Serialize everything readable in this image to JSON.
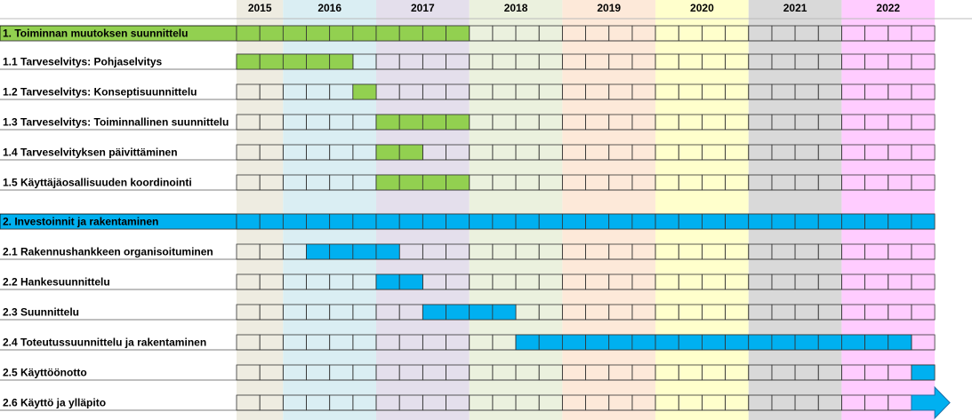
{
  "years": [
    "2015",
    "2016",
    "2017",
    "2018",
    "2019",
    "2020",
    "2021",
    "2022"
  ],
  "year_colors": [
    "#eeece1",
    "#daeef3",
    "#e4dfec",
    "#ebf1de",
    "#fde9d9",
    "#ffffcc",
    "#d9d9d9",
    "#ffccff"
  ],
  "rows": [
    {
      "label": "1. Toiminnan muutoksen suunnittelu",
      "start": 0,
      "end": 9,
      "color": "#92d050",
      "section": true
    },
    {
      "label": "1.1 Tarveselvitys: Pohjaselvitys",
      "start": 0,
      "end": 4,
      "color": "#92d050"
    },
    {
      "label": "1.2 Tarveselvitys: Konseptisuunnittelu",
      "start": 5,
      "end": 5,
      "color": "#92d050"
    },
    {
      "label": "1.3 Tarveselvitys: Toiminnallinen suunnittelu",
      "start": 6,
      "end": 9,
      "color": "#92d050"
    },
    {
      "label": "1.4  Tarveselvityksen päivittäminen",
      "start": 6,
      "end": 7,
      "color": "#92d050"
    },
    {
      "label": "1.5 Käyttäjäosallisuuden koordinointi",
      "start": 6,
      "end": 9,
      "color": "#92d050"
    },
    {
      "label": "2. Investoinnit ja rakentaminen",
      "start": 0,
      "end": 29,
      "color": "#00b0f0",
      "section": true
    },
    {
      "label": "2.1 Rakennushankkeen organisoituminen",
      "start": 3,
      "end": 6,
      "color": "#00b0f0"
    },
    {
      "label": "2.2 Hankesuunnittelu",
      "start": 6,
      "end": 7,
      "color": "#00b0f0"
    },
    {
      "label": "2.3 Suunnittelu",
      "start": 8,
      "end": 11,
      "color": "#00b0f0"
    },
    {
      "label": "2.4 Toteutussuunnittelu ja rakentaminen",
      "start": 12,
      "end": 28,
      "color": "#00b0f0"
    },
    {
      "label": "2.5 Käyttöönotto",
      "start": 29,
      "end": 29,
      "color": "#00b0f0"
    },
    {
      "label": "2.6 Käyttö ja ylläpito",
      "start": 29,
      "end": 29,
      "color": "#00b0f0",
      "arrow": true
    }
  ]
}
